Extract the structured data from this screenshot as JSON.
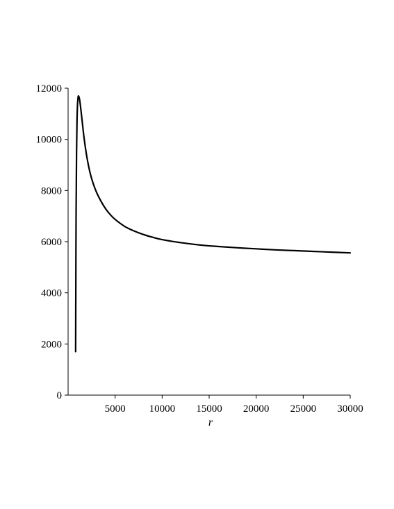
{
  "chart_data": {
    "type": "line",
    "title": "",
    "xlabel": "r",
    "ylabel": "",
    "xlim": [
      0,
      30000
    ],
    "ylim": [
      0,
      12000
    ],
    "grid": false,
    "legend": "none",
    "line_color": "#000000",
    "xticks": [
      5000,
      10000,
      15000,
      20000,
      25000,
      30000
    ],
    "xtick_labels": [
      "5000",
      "10000",
      "15000",
      "20000",
      "25000",
      "30000"
    ],
    "yticks": [
      0,
      2000,
      4000,
      6000,
      8000,
      10000,
      12000
    ],
    "ytick_labels": [
      "0",
      "2000",
      "4000",
      "6000",
      "8000",
      "10000",
      "12000"
    ],
    "series": [
      {
        "x": [
          800,
          820,
          850,
          900,
          950,
          1000,
          1050,
          1100,
          1200,
          1300,
          1500,
          1700,
          2000,
          2300,
          2600,
          3000,
          3500,
          4000,
          4500,
          5000,
          6000,
          7000,
          8000,
          9000,
          10000,
          12000,
          14000,
          16000,
          18000,
          20000,
          22000,
          24000,
          26000,
          28000,
          30000
        ],
        "y": [
          1700,
          4000,
          7000,
          9500,
          10800,
          11350,
          11600,
          11700,
          11600,
          11350,
          10700,
          10050,
          9300,
          8750,
          8350,
          7950,
          7580,
          7280,
          7050,
          6870,
          6600,
          6420,
          6280,
          6170,
          6080,
          5960,
          5870,
          5810,
          5760,
          5720,
          5680,
          5650,
          5620,
          5590,
          5560
        ]
      }
    ]
  }
}
